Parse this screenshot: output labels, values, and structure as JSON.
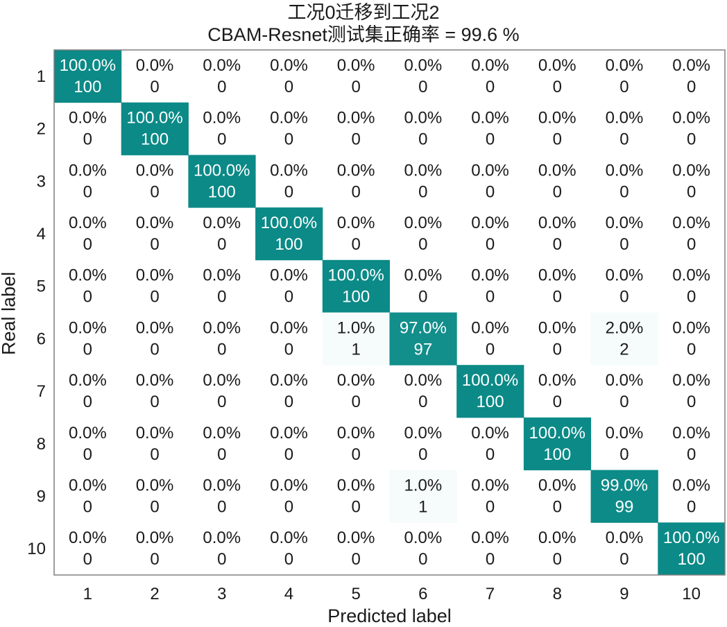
{
  "title": "工况0迁移到工况2",
  "subtitle": "CBAM-Resnet测试集正确率 = 99.6 %",
  "chart_data": {
    "type": "heatmap",
    "title": "工况0迁移到工况2",
    "subtitle": "CBAM-Resnet测试集正确率 = 99.6 %",
    "xlabel": "Predicted label",
    "ylabel": "Real label",
    "x_categories": [
      "1",
      "2",
      "3",
      "4",
      "5",
      "6",
      "7",
      "8",
      "9",
      "10"
    ],
    "y_categories": [
      "1",
      "2",
      "3",
      "4",
      "5",
      "6",
      "7",
      "8",
      "9",
      "10"
    ],
    "counts": [
      [
        100,
        0,
        0,
        0,
        0,
        0,
        0,
        0,
        0,
        0
      ],
      [
        0,
        100,
        0,
        0,
        0,
        0,
        0,
        0,
        0,
        0
      ],
      [
        0,
        0,
        100,
        0,
        0,
        0,
        0,
        0,
        0,
        0
      ],
      [
        0,
        0,
        0,
        100,
        0,
        0,
        0,
        0,
        0,
        0
      ],
      [
        0,
        0,
        0,
        0,
        100,
        0,
        0,
        0,
        0,
        0
      ],
      [
        0,
        0,
        0,
        0,
        1,
        97,
        0,
        0,
        2,
        0
      ],
      [
        0,
        0,
        0,
        0,
        0,
        0,
        100,
        0,
        0,
        0
      ],
      [
        0,
        0,
        0,
        0,
        0,
        0,
        0,
        100,
        0,
        0
      ],
      [
        0,
        0,
        0,
        0,
        0,
        1,
        0,
        0,
        99,
        0
      ],
      [
        0,
        0,
        0,
        0,
        0,
        0,
        0,
        0,
        0,
        100
      ]
    ],
    "percents": [
      [
        "100.0%",
        "0.0%",
        "0.0%",
        "0.0%",
        "0.0%",
        "0.0%",
        "0.0%",
        "0.0%",
        "0.0%",
        "0.0%"
      ],
      [
        "0.0%",
        "100.0%",
        "0.0%",
        "0.0%",
        "0.0%",
        "0.0%",
        "0.0%",
        "0.0%",
        "0.0%",
        "0.0%"
      ],
      [
        "0.0%",
        "0.0%",
        "100.0%",
        "0.0%",
        "0.0%",
        "0.0%",
        "0.0%",
        "0.0%",
        "0.0%",
        "0.0%"
      ],
      [
        "0.0%",
        "0.0%",
        "0.0%",
        "100.0%",
        "0.0%",
        "0.0%",
        "0.0%",
        "0.0%",
        "0.0%",
        "0.0%"
      ],
      [
        "0.0%",
        "0.0%",
        "0.0%",
        "0.0%",
        "100.0%",
        "0.0%",
        "0.0%",
        "0.0%",
        "0.0%",
        "0.0%"
      ],
      [
        "0.0%",
        "0.0%",
        "0.0%",
        "0.0%",
        "1.0%",
        "97.0%",
        "0.0%",
        "0.0%",
        "2.0%",
        "0.0%"
      ],
      [
        "0.0%",
        "0.0%",
        "0.0%",
        "0.0%",
        "0.0%",
        "0.0%",
        "100.0%",
        "0.0%",
        "0.0%",
        "0.0%"
      ],
      [
        "0.0%",
        "0.0%",
        "0.0%",
        "0.0%",
        "0.0%",
        "0.0%",
        "0.0%",
        "100.0%",
        "0.0%",
        "0.0%"
      ],
      [
        "0.0%",
        "0.0%",
        "0.0%",
        "0.0%",
        "0.0%",
        "1.0%",
        "0.0%",
        "0.0%",
        "99.0%",
        "0.0%"
      ],
      [
        "0.0%",
        "0.0%",
        "0.0%",
        "0.0%",
        "0.0%",
        "0.0%",
        "0.0%",
        "0.0%",
        "0.0%",
        "100.0%"
      ]
    ],
    "colors": {
      "high": "#0b8a87",
      "low": "#ffffff",
      "pale_2pct": "#f6fbfc",
      "text_dark": "#1a1a1a",
      "text_light": "#ffffff",
      "frame": "#7f7f7f"
    },
    "grid": false
  }
}
